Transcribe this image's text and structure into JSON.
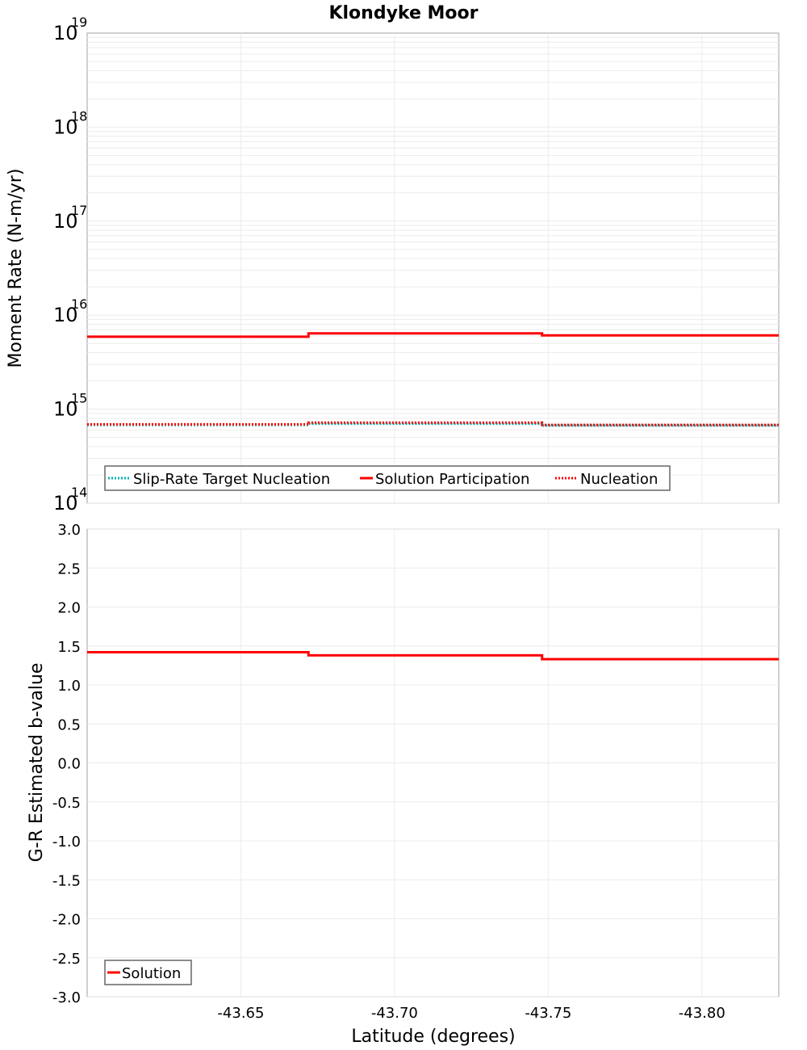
{
  "chart_data": [
    {
      "type": "line",
      "step": true,
      "title": "Klondyke Moor",
      "xlabel": "Latitude (degrees)",
      "ylabel": "Moment Rate (N-m/yr)",
      "yscale": "log",
      "ylim": [
        100000000000000.0,
        1e+19
      ],
      "xlim": [
        -43.6,
        -43.825
      ],
      "x_inverted": true,
      "ytick_labels": [
        {
          "base": "10",
          "exp": "14"
        },
        {
          "base": "10",
          "exp": "15"
        },
        {
          "base": "10",
          "exp": "16"
        },
        {
          "base": "10",
          "exp": "17"
        },
        {
          "base": "10",
          "exp": "18"
        },
        {
          "base": "10",
          "exp": "19"
        }
      ],
      "grid": true,
      "legend_position": "lower-left",
      "x_edges": [
        -43.6,
        -43.672,
        -43.748,
        -43.825
      ],
      "series": [
        {
          "name": "Slip-Rate Target Nucleation",
          "color": "#00b3b3",
          "style": "dotted",
          "values": [
            680000000000000.0,
            700000000000000.0,
            670000000000000.0
          ]
        },
        {
          "name": "Solution Participation",
          "color": "#ff0000",
          "style": "solid",
          "values": [
            5900000000000000.0,
            6400000000000000.0,
            6100000000000000.0
          ]
        },
        {
          "name": "Nucleation",
          "color": "#ff0000",
          "style": "dotted",
          "values": [
            690000000000000.0,
            720000000000000.0,
            680000000000000.0
          ]
        }
      ]
    },
    {
      "type": "line",
      "step": true,
      "title": "",
      "xlabel": "Latitude (degrees)",
      "ylabel": "G-R Estimated b-value",
      "ylim": [
        -3.0,
        3.0
      ],
      "xlim": [
        -43.6,
        -43.825
      ],
      "x_inverted": true,
      "yticks": [
        "3.0",
        "2.5",
        "2.0",
        "1.5",
        "1.0",
        "0.5",
        "0.0",
        "-0.5",
        "-1.0",
        "-1.5",
        "-2.0",
        "-2.5",
        "-3.0"
      ],
      "xticks": [
        "-43.65",
        "-43.70",
        "-43.75",
        "-43.80"
      ],
      "grid": true,
      "legend_position": "lower-left",
      "x_edges": [
        -43.6,
        -43.672,
        -43.748,
        -43.825
      ],
      "series": [
        {
          "name": "Solution",
          "color": "#ff0000",
          "style": "solid",
          "values": [
            1.42,
            1.38,
            1.33
          ]
        }
      ]
    }
  ]
}
